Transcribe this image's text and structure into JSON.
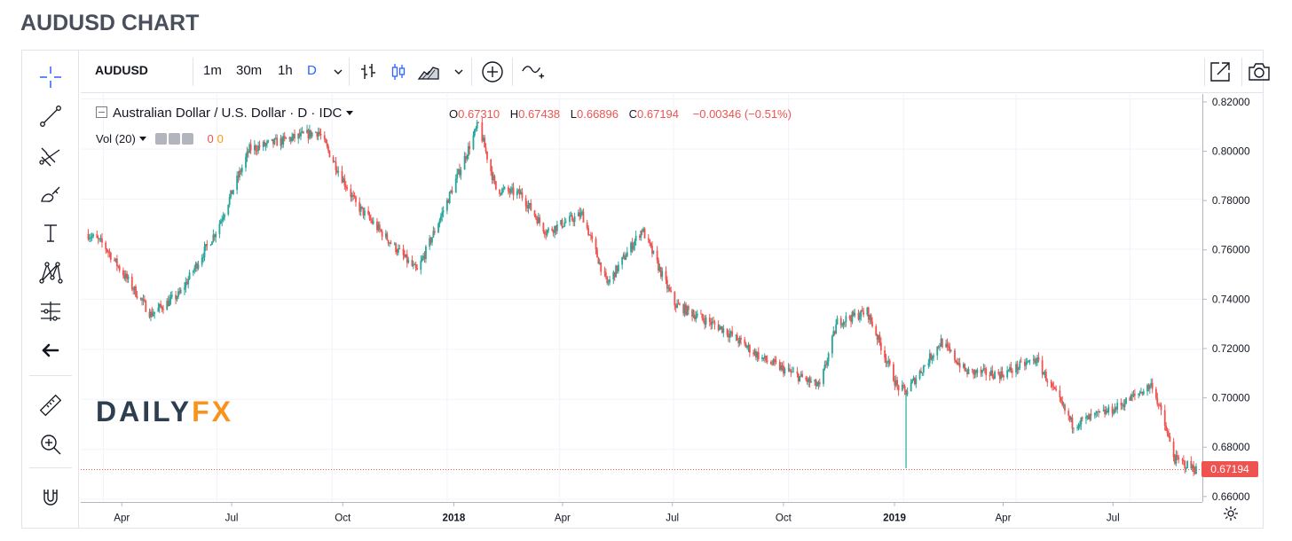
{
  "page_title": "AUDUSD CHART",
  "toolbar": {
    "symbol": "AUDUSD",
    "intervals": [
      {
        "label": "1m",
        "active": false
      },
      {
        "label": "30m",
        "active": false
      },
      {
        "label": "1h",
        "active": false
      },
      {
        "label": "D",
        "active": true
      }
    ],
    "icons": [
      "interval-dropdown-icon",
      "bar-style-icon",
      "candle-style-icon",
      "area-chart-icon",
      "chart-type-dropdown-icon",
      "add-indicator-icon",
      "compare-icon",
      "popout-icon",
      "snapshot-icon"
    ]
  },
  "left_toolbar": {
    "icons": [
      "crosshair-icon",
      "trend-line-icon",
      "fib-icon",
      "brush-icon",
      "text-icon",
      "pattern-icon",
      "measure-lines-icon",
      "back-arrow-icon",
      "ruler-icon",
      "zoom-in-icon",
      "magnet-icon"
    ]
  },
  "legend": {
    "symbol_text": "Australian Dollar / U.S. Dollar · D · IDC",
    "o_label": "O",
    "o_value": "0.67310",
    "h_label": "H",
    "h_value": "0.67438",
    "l_label": "L",
    "l_value": "0.66896",
    "c_label": "C",
    "c_value": "0.67194",
    "change": "−0.00346 (−0.51%)",
    "vol_label": "Vol (20)",
    "vol_value1": "0",
    "vol_value2": "0"
  },
  "watermark": {
    "part1": "DAILY",
    "part2": "FX"
  },
  "last_price_label": "0.67194",
  "colors": {
    "up": "#26a69a",
    "down": "#ef5350",
    "grid": "#f0f3fa",
    "accent": "#2962ff"
  },
  "chart_data": {
    "type": "candlestick",
    "symbol": "AUDUSD",
    "timeframe": "D",
    "price_ticks": [
      "0.82000",
      "0.80000",
      "0.78000",
      "0.76000",
      "0.74000",
      "0.72000",
      "0.70000",
      "0.68000",
      "0.66000"
    ],
    "time_ticks": [
      "Apr",
      "Jul",
      "Oct",
      "2018",
      "Apr",
      "Jul",
      "Oct",
      "2019",
      "Apr",
      "Jul"
    ],
    "ylim": [
      0.659,
      0.822
    ],
    "last_close": 0.67194,
    "x": [
      "2017-03-20",
      "2017-04-01",
      "2017-05-09",
      "2017-06-01",
      "2017-07-01",
      "2017-07-27",
      "2017-09-20",
      "2017-10-20",
      "2017-12-08",
      "2018-01-01",
      "2018-01-26",
      "2018-02-09",
      "2018-03-01",
      "2018-03-21",
      "2018-04-19",
      "2018-05-09",
      "2018-06-06",
      "2018-07-02",
      "2018-08-10",
      "2018-09-11",
      "2018-10-26",
      "2018-11-09",
      "2018-12-03",
      "2018-12-27",
      "2019-01-03",
      "2019-01-31",
      "2019-02-20",
      "2019-03-20",
      "2019-04-17",
      "2019-05-16",
      "2019-06-18",
      "2019-07-19",
      "2019-08-06",
      "2019-08-23"
    ],
    "close": [
      0.766,
      0.762,
      0.734,
      0.742,
      0.768,
      0.8,
      0.807,
      0.778,
      0.751,
      0.779,
      0.81,
      0.784,
      0.782,
      0.767,
      0.774,
      0.746,
      0.768,
      0.738,
      0.728,
      0.716,
      0.705,
      0.731,
      0.735,
      0.705,
      0.703,
      0.723,
      0.711,
      0.71,
      0.716,
      0.69,
      0.696,
      0.706,
      0.676,
      0.672
    ]
  }
}
